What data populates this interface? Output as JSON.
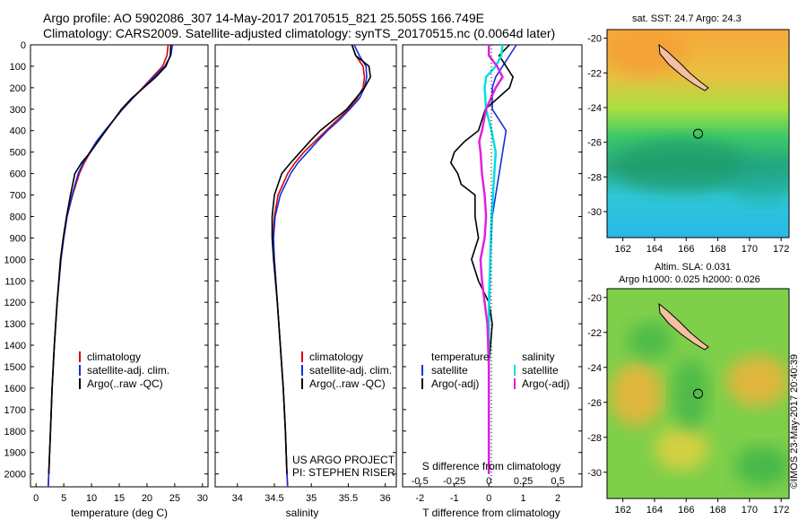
{
  "header": {
    "line1": "Argo profile: AO 5902086_307 14-May-2017 20170515_821 25.505S 166.749E",
    "line2": "Climatology: CARS2009. Satellite-adjusted climatology: synTS_20170515.nc (0.0064d later)"
  },
  "project": {
    "line1": "US ARGO PROJECT",
    "line2": "PI: STEPHEN RISER"
  },
  "stamp": "©IMOS 23-May-2017 20:40:39",
  "maps": {
    "top_title": "sat. SST: 24.7  Argo: 24.3",
    "bottom_title_1": "Altim. SLA: 0.031",
    "bottom_title_2": "Argo h1000: 0.025 h2000: 0.026",
    "lat_ticks": [
      -20,
      -22,
      -24,
      -26,
      -28,
      -30
    ],
    "lon_ticks": [
      162,
      164,
      166,
      168,
      170,
      172
    ],
    "lat_range": [
      -31.5,
      -19.5
    ],
    "lon_range": [
      161,
      172.5
    ],
    "float_position": {
      "lon": 166.749,
      "lat": -25.505
    }
  },
  "colors": {
    "climatology": "#e00000",
    "satellite": "#1030e0",
    "argo": "#000000",
    "satellite_s": "#00e0e0",
    "argo_s": "#e020e0"
  },
  "chart_data": [
    {
      "type": "line",
      "xlabel": "temperature (deg C)",
      "ylabel": "",
      "xlim": [
        -1,
        31
      ],
      "ylim": [
        2060,
        0
      ],
      "x_ticks": [
        0,
        5,
        10,
        15,
        20,
        25,
        30
      ],
      "y_ticks": [
        0,
        100,
        200,
        300,
        400,
        500,
        600,
        700,
        800,
        900,
        1000,
        1100,
        1200,
        1300,
        1400,
        1500,
        1600,
        1700,
        1800,
        1900,
        2000
      ],
      "legend": [
        "climatology",
        "satellite-adj. clim.",
        "Argo(..raw -QC)"
      ],
      "legend_position": "bottom-left",
      "series": [
        {
          "name": "climatology",
          "depth": [
            0,
            50,
            100,
            150,
            200,
            250,
            300,
            350,
            400,
            450,
            500,
            550,
            600,
            700,
            800,
            900,
            1000,
            1200,
            1400,
            1600,
            1800,
            2000,
            2060
          ],
          "values": [
            23.8,
            23.6,
            22.8,
            21.0,
            19.2,
            17.4,
            15.6,
            14.0,
            12.5,
            11.0,
            9.8,
            8.7,
            7.8,
            6.6,
            5.6,
            5.0,
            4.5,
            3.8,
            3.3,
            2.9,
            2.6,
            2.3,
            2.2
          ]
        },
        {
          "name": "satellite-adj. clim.",
          "depth": [
            0,
            50,
            100,
            150,
            200,
            250,
            300,
            350,
            400,
            450,
            500,
            550,
            600,
            700,
            800,
            900,
            1000,
            1200,
            1400,
            1600,
            1800,
            2000,
            2060
          ],
          "values": [
            24.6,
            24.3,
            23.2,
            21.2,
            19.3,
            17.4,
            15.6,
            14.0,
            12.4,
            10.9,
            9.7,
            8.5,
            7.6,
            6.5,
            5.6,
            5.0,
            4.5,
            3.8,
            3.3,
            2.9,
            2.6,
            2.3,
            2.2
          ]
        },
        {
          "name": "Argo(..raw -QC)",
          "depth": [
            0,
            50,
            100,
            150,
            200,
            250,
            300,
            350,
            400,
            450,
            500,
            550,
            600,
            700,
            800,
            900,
            1000,
            1200,
            1400,
            1600,
            1800,
            2000
          ],
          "values": [
            24.3,
            24.2,
            23.4,
            21.6,
            19.4,
            17.2,
            15.4,
            14.0,
            12.6,
            11.2,
            9.8,
            8.2,
            7.0,
            6.2,
            5.5,
            4.9,
            4.4,
            3.8,
            3.3,
            2.9,
            2.6,
            2.3
          ]
        }
      ]
    },
    {
      "type": "line",
      "xlabel": "salinity",
      "ylabel": "",
      "xlim": [
        33.7,
        36.15
      ],
      "ylim": [
        2060,
        0
      ],
      "x_ticks": [
        34,
        34.5,
        35,
        35.5,
        36
      ],
      "x_tick_labels": [
        "34",
        "34.5",
        "35",
        "35.5",
        "36"
      ],
      "legend": [
        "climatology",
        "satellite-adj. clim.",
        "Argo(..raw -QC)"
      ],
      "legend_position": "bottom-right",
      "series": [
        {
          "name": "climatology",
          "depth": [
            0,
            50,
            100,
            150,
            200,
            250,
            300,
            350,
            400,
            450,
            500,
            550,
            600,
            700,
            800,
            900,
            1000,
            1200,
            1400,
            1600,
            1800,
            2000,
            2060
          ],
          "values": [
            35.55,
            35.6,
            35.7,
            35.72,
            35.7,
            35.62,
            35.5,
            35.35,
            35.2,
            35.05,
            34.9,
            34.78,
            34.68,
            34.55,
            34.5,
            34.48,
            34.5,
            34.54,
            34.58,
            34.62,
            34.65,
            34.67,
            34.68
          ]
        },
        {
          "name": "satellite-adj. clim.",
          "depth": [
            0,
            50,
            100,
            150,
            200,
            250,
            300,
            350,
            400,
            450,
            500,
            550,
            600,
            700,
            800,
            900,
            1000,
            1200,
            1400,
            1600,
            1800,
            2000,
            2060
          ],
          "values": [
            35.58,
            35.65,
            35.74,
            35.75,
            35.72,
            35.65,
            35.52,
            35.38,
            35.22,
            35.08,
            34.95,
            34.82,
            34.72,
            34.58,
            34.51,
            34.49,
            34.5,
            34.54,
            34.58,
            34.62,
            34.65,
            34.67,
            34.68
          ]
        },
        {
          "name": "Argo(..raw -QC)",
          "depth": [
            0,
            50,
            100,
            150,
            200,
            250,
            300,
            350,
            400,
            450,
            500,
            550,
            600,
            700,
            800,
            900,
            1000,
            1200,
            1400,
            1600,
            1800,
            2000
          ],
          "values": [
            35.55,
            35.6,
            35.78,
            35.8,
            35.72,
            35.6,
            35.48,
            35.3,
            35.12,
            34.98,
            34.85,
            34.72,
            34.6,
            34.5,
            34.47,
            34.47,
            34.49,
            34.54,
            34.58,
            34.62,
            34.65,
            34.67
          ]
        }
      ]
    },
    {
      "type": "line",
      "xlabel": "T difference from climatology",
      "ylabel": "",
      "title": "S difference from climatology",
      "xlim": [
        -2.5,
        2.7
      ],
      "ylim": [
        2060,
        0
      ],
      "x_ticks": [
        -2,
        -1,
        0,
        1,
        2
      ],
      "secondary_x_ticks": [
        -0.5,
        -0.25,
        0,
        0.25,
        0.5
      ],
      "secondary_x_tick_labels": [
        "-0.5",
        "-0.25",
        "0",
        "0.25",
        "0.5"
      ],
      "legend": [
        "temperature",
        "satellite",
        "Argo(-adj)",
        "salinity",
        "satellite",
        "Argo(-adj)"
      ],
      "legend_position": "bottom-center",
      "series": [
        {
          "name": "satellite",
          "quantity": "temperature",
          "depth": [
            0,
            50,
            100,
            150,
            200,
            300,
            400,
            500,
            600,
            700,
            800,
            1000,
            1200,
            1500,
            2000
          ],
          "values": [
            0.8,
            0.6,
            0.4,
            0.2,
            0.1,
            0.1,
            0.5,
            0.4,
            0.3,
            0.2,
            0.1,
            0.05,
            0.02,
            0.0,
            0.0
          ]
        },
        {
          "name": "Argo(-adj)",
          "quantity": "temperature",
          "depth": [
            0,
            50,
            100,
            150,
            200,
            300,
            400,
            450,
            500,
            550,
            600,
            650,
            700,
            800,
            900,
            1000,
            1100,
            1200,
            1300,
            1500,
            1800,
            2000
          ],
          "values": [
            0.6,
            0.3,
            0.5,
            0.7,
            0.6,
            -0.1,
            -0.3,
            -0.7,
            -1.0,
            -1.1,
            -0.9,
            -0.8,
            -0.4,
            -0.4,
            -0.3,
            -0.5,
            -0.3,
            0.0,
            0.1,
            0.0,
            0.0,
            0.0
          ]
        },
        {
          "name": "satellite",
          "quantity": "salinity",
          "depth": [
            0,
            50,
            100,
            150,
            200,
            300,
            400,
            500,
            600,
            800,
            1000,
            1200,
            1500,
            2000
          ],
          "values": [
            0.1,
            0.09,
            0.05,
            -0.02,
            -0.03,
            -0.02,
            0.02,
            0.05,
            0.04,
            0.02,
            0.01,
            0.0,
            0.0,
            0.0
          ]
        },
        {
          "name": "Argo(-adj)",
          "quantity": "salinity",
          "depth": [
            0,
            50,
            100,
            150,
            200,
            300,
            400,
            450,
            500,
            600,
            700,
            800,
            900,
            1000,
            1100,
            1200,
            1300,
            1500,
            2000
          ],
          "values": [
            0.0,
            0.0,
            0.06,
            0.1,
            0.05,
            -0.02,
            -0.05,
            -0.07,
            -0.06,
            -0.05,
            -0.03,
            -0.02,
            -0.03,
            -0.06,
            -0.05,
            -0.03,
            -0.01,
            0.0,
            0.0
          ]
        }
      ]
    }
  ]
}
